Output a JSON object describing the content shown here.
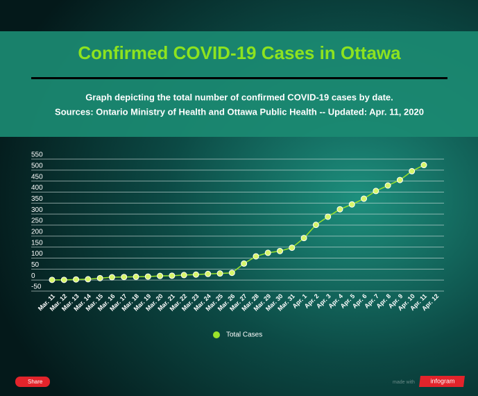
{
  "chart_data": {
    "type": "line",
    "title": "Confirmed COVID-19 Cases in Ottawa",
    "subtitle": [
      "Graph depicting the total number of confirmed COVID-19 cases by date.",
      "Sources:  Ontario Ministry of Health and Ottawa Public Health -- Updated: Apr. 11, 2020"
    ],
    "categories": [
      "Mar. 11",
      "Mar. 12",
      "Mar. 13",
      "Mar. 14",
      "Mar. 15",
      "Mar. 16",
      "Mar. 17",
      "Mar. 18",
      "Mar. 19",
      "Mar. 20",
      "Mar. 21",
      "Mar. 22",
      "Mar. 23",
      "Mar. 24",
      "Mar. 25",
      "Mar. 26",
      "Mar. 27",
      "Mar. 28",
      "Mar. 29",
      "Mar. 30",
      "Mar. 31",
      "Apr. 1",
      "Apr. 2",
      "Apr. 3",
      "Apr. 4",
      "Apr. 5",
      "Apr. 6",
      "Apr. 7",
      "Apr. 8",
      "Apr. 9",
      "Apr. 10",
      "Apr. 11",
      "Apr. 12"
    ],
    "series": [
      {
        "name": "Total Cases",
        "color": "#9be32a",
        "values": [
          1,
          1,
          3,
          4,
          9,
          13,
          14,
          15,
          16,
          19,
          20,
          23,
          25,
          28,
          30,
          33,
          75,
          108,
          124,
          132,
          147,
          191,
          251,
          288,
          322,
          344,
          370,
          405,
          430,
          455,
          495,
          523,
          null
        ]
      }
    ],
    "ylim": [
      -50,
      550
    ],
    "yticks": [
      -50,
      0,
      50,
      100,
      150,
      200,
      250,
      300,
      350,
      400,
      450,
      500,
      550
    ],
    "grid": true,
    "legend": "bottom"
  },
  "footer": {
    "share": "Share",
    "made_with": "made with",
    "brand": "infogram"
  }
}
